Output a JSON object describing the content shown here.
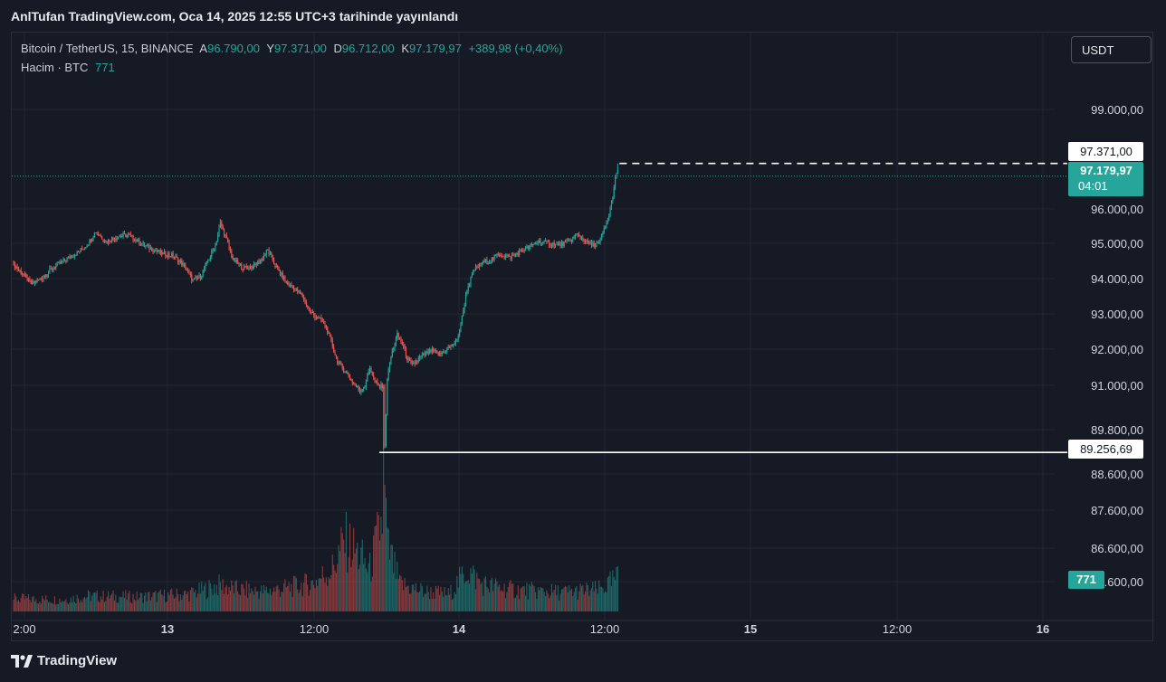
{
  "header": {
    "title": "AnlTufan TradingView.com, Oca 14, 2025 12:55 UTC+3 tarihinde yayınlandı"
  },
  "legend": {
    "symbol": "Bitcoin / TetherUS, 15, BINANCE",
    "open_label": "A",
    "open": "96.790,00",
    "high_label": "Y",
    "high": "97.371,00",
    "low_label": "D",
    "low": "96.712,00",
    "close_label": "K",
    "close": "97.179,97",
    "change": "+389,98 (+0,40%)",
    "volume_label": "Hacim · BTC",
    "volume_value": "771"
  },
  "toolbar": {
    "currency": "USDT"
  },
  "footer": {
    "brand": "TradingView"
  },
  "colors": {
    "up": "#26a69a",
    "down": "#ef5350",
    "background": "#161a25",
    "grid": "#232733",
    "text": "#d1d4dc"
  },
  "chart_data": {
    "type": "candlestick",
    "x_ticks": [
      "2:00",
      "13",
      "12:00",
      "14",
      "12:00",
      "15",
      "12:00",
      "16"
    ],
    "y_ticks": [
      "99.000,00",
      "96.000,00",
      "95.000,00",
      "94.000,00",
      "93.000,00",
      "92.000,00",
      "91.000,00",
      "89.800,00",
      "88.600,00",
      "87.600,00",
      "86.600,00",
      "85.600,00"
    ],
    "price_labels": {
      "high_marker": "97.371,00",
      "last_price": "97.179,97",
      "countdown": "04:01",
      "low_marker": "89.256,69",
      "volume_badge": "771"
    },
    "close_path": [
      [
        0,
        94400
      ],
      [
        8,
        94100
      ],
      [
        14,
        93850
      ],
      [
        22,
        94000
      ],
      [
        30,
        94250
      ],
      [
        40,
        94500
      ],
      [
        52,
        94750
      ],
      [
        60,
        95000
      ],
      [
        66,
        95350
      ],
      [
        74,
        95050
      ],
      [
        84,
        95200
      ],
      [
        92,
        95250
      ],
      [
        100,
        95050
      ],
      [
        110,
        94850
      ],
      [
        120,
        94700
      ],
      [
        128,
        94650
      ],
      [
        136,
        94400
      ],
      [
        144,
        93950
      ],
      [
        150,
        94050
      ],
      [
        156,
        94500
      ],
      [
        162,
        94950
      ],
      [
        166,
        95600
      ],
      [
        170,
        95200
      ],
      [
        176,
        94550
      ],
      [
        184,
        94300
      ],
      [
        192,
        94350
      ],
      [
        198,
        94500
      ],
      [
        204,
        94800
      ],
      [
        212,
        94250
      ],
      [
        220,
        93850
      ],
      [
        226,
        93700
      ],
      [
        232,
        93500
      ],
      [
        238,
        93050
      ],
      [
        244,
        92900
      ],
      [
        250,
        92700
      ],
      [
        255,
        92200
      ],
      [
        260,
        91650
      ],
      [
        266,
        91400
      ],
      [
        272,
        91100
      ],
      [
        278,
        90850
      ],
      [
        282,
        91000
      ],
      [
        286,
        91500
      ],
      [
        290,
        91100
      ],
      [
        294,
        90950
      ],
      [
        297,
        91000
      ],
      [
        298,
        89300
      ],
      [
        300,
        91200
      ],
      [
        304,
        91950
      ],
      [
        308,
        92400
      ],
      [
        312,
        92150
      ],
      [
        316,
        91750
      ],
      [
        320,
        91550
      ],
      [
        326,
        91750
      ],
      [
        330,
        91850
      ],
      [
        336,
        91950
      ],
      [
        342,
        91850
      ],
      [
        348,
        92000
      ],
      [
        352,
        92100
      ],
      [
        356,
        92250
      ],
      [
        360,
        92900
      ],
      [
        364,
        93700
      ],
      [
        370,
        94250
      ],
      [
        376,
        94450
      ],
      [
        382,
        94500
      ],
      [
        390,
        94700
      ],
      [
        398,
        94600
      ],
      [
        406,
        94750
      ],
      [
        414,
        94900
      ],
      [
        422,
        95050
      ],
      [
        430,
        95000
      ],
      [
        438,
        94950
      ],
      [
        446,
        95050
      ],
      [
        452,
        95250
      ],
      [
        458,
        95100
      ],
      [
        464,
        94950
      ],
      [
        470,
        95000
      ],
      [
        474,
        95400
      ],
      [
        478,
        95800
      ],
      [
        481,
        96400
      ],
      [
        483,
        96900
      ],
      [
        485,
        97180
      ]
    ],
    "volume_profile": [
      [
        0,
        14
      ],
      [
        40,
        13
      ],
      [
        60,
        17
      ],
      [
        100,
        16
      ],
      [
        140,
        19
      ],
      [
        166,
        29
      ],
      [
        180,
        24
      ],
      [
        200,
        22
      ],
      [
        220,
        26
      ],
      [
        240,
        31
      ],
      [
        256,
        47
      ],
      [
        266,
        78
      ],
      [
        276,
        64
      ],
      [
        286,
        46
      ],
      [
        296,
        102
      ],
      [
        297,
        187
      ],
      [
        300,
        72
      ],
      [
        310,
        30
      ],
      [
        330,
        22
      ],
      [
        350,
        19
      ],
      [
        364,
        46
      ],
      [
        376,
        30
      ],
      [
        400,
        24
      ],
      [
        440,
        21
      ],
      [
        470,
        24
      ],
      [
        478,
        30
      ],
      [
        485,
        37
      ]
    ]
  }
}
